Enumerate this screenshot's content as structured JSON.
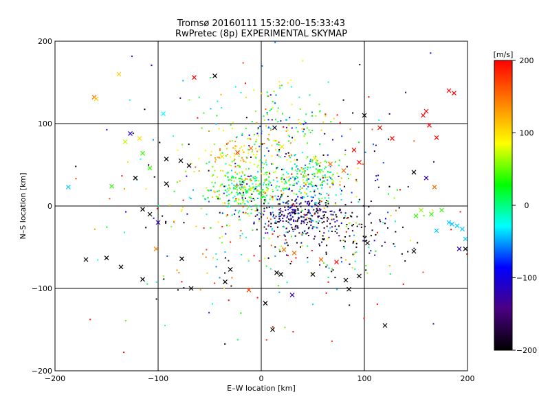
{
  "title_lines": [
    "Tromsø 20160111 15:32:00–15:33:43",
    "RwPretec (8p) EXPERIMENTAL SKYMAP"
  ],
  "chart_data": {
    "type": "scatter",
    "title": "Tromsø 20160111 15:32:00–15:33:43 / RwPretec (8p) EXPERIMENTAL SKYMAP",
    "xlabel": "E–W location [km]",
    "ylabel": "N–S location [km]",
    "xlim": [
      -200,
      200
    ],
    "ylim": [
      -200,
      200
    ],
    "xticks": [
      -200,
      -100,
      0,
      100,
      200
    ],
    "yticks": [
      -200,
      -100,
      0,
      100,
      200
    ],
    "grid": true,
    "colorbar": {
      "label": "[m/s]",
      "range": [
        -200,
        200
      ],
      "ticks": [
        -200,
        -100,
        0,
        100,
        200
      ],
      "colormap": [
        "#000000",
        "#4b0082",
        "#0000ff",
        "#00ffff",
        "#00ff00",
        "#ffff00",
        "#ff7f00",
        "#ff0000"
      ]
    },
    "crosses": [
      {
        "x": -162,
        "y": 132,
        "v": 150
      },
      {
        "x": -160,
        "y": 130,
        "v": 110
      },
      {
        "x": -138,
        "y": 160,
        "v": 110
      },
      {
        "x": -65,
        "y": 156,
        "v": 200
      },
      {
        "x": -127,
        "y": 88,
        "v": -110
      },
      {
        "x": -132,
        "y": 78,
        "v": 70
      },
      {
        "x": -118,
        "y": 82,
        "v": 100
      },
      {
        "x": -115,
        "y": 64,
        "v": 40
      },
      {
        "x": -108,
        "y": 46,
        "v": 40
      },
      {
        "x": -145,
        "y": 24,
        "v": 40
      },
      {
        "x": -187,
        "y": 23,
        "v": -40
      },
      {
        "x": -122,
        "y": 34,
        "v": -200
      },
      {
        "x": -92,
        "y": 57,
        "v": -200
      },
      {
        "x": -92,
        "y": 27,
        "v": -200
      },
      {
        "x": -78,
        "y": 55,
        "v": -200
      },
      {
        "x": -70,
        "y": 49,
        "v": -200
      },
      {
        "x": -108,
        "y": -10,
        "v": -200
      },
      {
        "x": -115,
        "y": -4,
        "v": -200
      },
      {
        "x": -100,
        "y": -20,
        "v": -120
      },
      {
        "x": -102,
        "y": -52,
        "v": 140
      },
      {
        "x": -95,
        "y": 112,
        "v": -30
      },
      {
        "x": -170,
        "y": -65,
        "v": -200
      },
      {
        "x": -150,
        "y": -63,
        "v": -200
      },
      {
        "x": -136,
        "y": -74,
        "v": -200
      },
      {
        "x": -115,
        "y": -89,
        "v": -200
      },
      {
        "x": -77,
        "y": -64,
        "v": -200
      },
      {
        "x": -68,
        "y": -100,
        "v": -200
      },
      {
        "x": -35,
        "y": -92,
        "v": -200
      },
      {
        "x": -30,
        "y": -77,
        "v": -200
      },
      {
        "x": -12,
        "y": -102,
        "v": 170
      },
      {
        "x": -45,
        "y": 158,
        "v": -200
      },
      {
        "x": 13,
        "y": 95,
        "v": -200
      },
      {
        "x": 4,
        "y": -118,
        "v": -200
      },
      {
        "x": 11,
        "y": -150,
        "v": -200
      },
      {
        "x": 15,
        "y": -81,
        "v": -200
      },
      {
        "x": 19,
        "y": -83,
        "v": -200
      },
      {
        "x": 30,
        "y": -108,
        "v": -120
      },
      {
        "x": 50,
        "y": -83,
        "v": -200
      },
      {
        "x": 82,
        "y": -90,
        "v": -200
      },
      {
        "x": 85,
        "y": -101,
        "v": -200
      },
      {
        "x": 95,
        "y": -85,
        "v": -200
      },
      {
        "x": 100,
        "y": 110,
        "v": -200
      },
      {
        "x": 103,
        "y": -45,
        "v": -200
      },
      {
        "x": 120,
        "y": -145,
        "v": -200
      },
      {
        "x": 157,
        "y": 110,
        "v": 200
      },
      {
        "x": 160,
        "y": 115,
        "v": 200
      },
      {
        "x": 170,
        "y": 83,
        "v": 200
      },
      {
        "x": 163,
        "y": 98,
        "v": 200
      },
      {
        "x": 182,
        "y": 140,
        "v": 200
      },
      {
        "x": 187,
        "y": 137,
        "v": 200
      },
      {
        "x": 115,
        "y": 95,
        "v": 200
      },
      {
        "x": 127,
        "y": 82,
        "v": 200
      },
      {
        "x": 160,
        "y": 34,
        "v": -120
      },
      {
        "x": 148,
        "y": 41,
        "v": -200
      },
      {
        "x": 168,
        "y": 23,
        "v": 150
      },
      {
        "x": 155,
        "y": -5,
        "v": 60
      },
      {
        "x": 150,
        "y": -12,
        "v": 40
      },
      {
        "x": 165,
        "y": -10,
        "v": 40
      },
      {
        "x": 175,
        "y": -5,
        "v": 40
      },
      {
        "x": 182,
        "y": -20,
        "v": -40
      },
      {
        "x": 185,
        "y": -22,
        "v": -40
      },
      {
        "x": 190,
        "y": -24,
        "v": -40
      },
      {
        "x": 195,
        "y": -28,
        "v": -40
      },
      {
        "x": 198,
        "y": -40,
        "v": -40
      },
      {
        "x": 170,
        "y": -30,
        "v": -40
      },
      {
        "x": 148,
        "y": -55,
        "v": -200
      },
      {
        "x": 192,
        "y": -52,
        "v": -120
      },
      {
        "x": 198,
        "y": -52,
        "v": -200
      },
      {
        "x": -23,
        "y": 65,
        "v": 170
      },
      {
        "x": -10,
        "y": 70,
        "v": 150
      },
      {
        "x": -38,
        "y": 60,
        "v": 100
      },
      {
        "x": 22,
        "y": -53,
        "v": 150
      },
      {
        "x": 32,
        "y": -57,
        "v": 150
      },
      {
        "x": 58,
        "y": -65,
        "v": 160
      },
      {
        "x": 73,
        "y": -68,
        "v": 200
      },
      {
        "x": 20,
        "y": 72,
        "v": 100
      },
      {
        "x": 52,
        "y": 58,
        "v": 100
      },
      {
        "x": 56,
        "y": 42,
        "v": 60
      },
      {
        "x": 67,
        "y": 51,
        "v": 150
      },
      {
        "x": 80,
        "y": 43,
        "v": 150
      },
      {
        "x": 90,
        "y": 68,
        "v": 200
      },
      {
        "x": 95,
        "y": 53,
        "v": 200
      }
    ],
    "clusters": [
      {
        "cx": -15,
        "cy": 20,
        "sx": 18,
        "sy": 14,
        "n": 260,
        "vmean": 30,
        "vspread": 45
      },
      {
        "cx": 40,
        "cy": 35,
        "sx": 22,
        "sy": 14,
        "n": 220,
        "vmean": 10,
        "vspread": 60
      },
      {
        "cx": 35,
        "cy": -10,
        "sx": 20,
        "sy": 12,
        "n": 240,
        "vmean": -150,
        "vspread": 55
      },
      {
        "cx": 70,
        "cy": -30,
        "sx": 30,
        "sy": 20,
        "n": 120,
        "vmean": -190,
        "vspread": 20
      },
      {
        "cx": -20,
        "cy": 60,
        "sx": 18,
        "sy": 14,
        "n": 90,
        "vmean": 100,
        "vspread": 40
      },
      {
        "cx": 15,
        "cy": 100,
        "sx": 25,
        "sy": 25,
        "n": 120,
        "vmean": 10,
        "vspread": 70
      },
      {
        "cx": 20,
        "cy": 0,
        "sx": 70,
        "sy": 60,
        "n": 320,
        "vmean": 0,
        "vspread": 140
      },
      {
        "cx": 0,
        "cy": 0,
        "sx": 120,
        "sy": 100,
        "n": 160,
        "vmean": 0,
        "vspread": 170
      }
    ]
  }
}
